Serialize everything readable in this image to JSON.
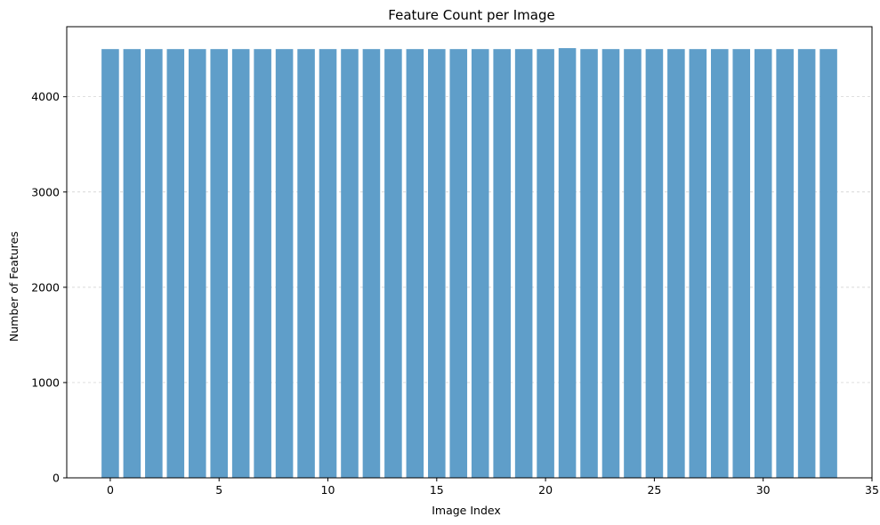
{
  "chart_data": {
    "type": "bar",
    "title": "Feature Count per Image",
    "xlabel": "Image Index",
    "ylabel": "Number of Features",
    "x": [
      0,
      1,
      2,
      3,
      4,
      5,
      6,
      7,
      8,
      9,
      10,
      11,
      12,
      13,
      14,
      15,
      16,
      17,
      18,
      19,
      20,
      21,
      22,
      23,
      24,
      25,
      26,
      27,
      28,
      29,
      30,
      31,
      32,
      33
    ],
    "values": [
      4500,
      4500,
      4500,
      4500,
      4500,
      4500,
      4500,
      4500,
      4500,
      4500,
      4500,
      4500,
      4500,
      4500,
      4500,
      4500,
      4500,
      4500,
      4500,
      4500,
      4500,
      4510,
      4500,
      4500,
      4500,
      4500,
      4500,
      4500,
      4500,
      4500,
      4500,
      4500,
      4500,
      4500
    ],
    "xlim": [
      -2,
      35
    ],
    "ylim": [
      0,
      4735
    ],
    "xticks": [
      0,
      5,
      10,
      15,
      20,
      25,
      30,
      35
    ],
    "yticks": [
      0,
      1000,
      2000,
      3000,
      4000
    ],
    "grid": "y-dashed",
    "bar_color": "#5f9ec9"
  }
}
